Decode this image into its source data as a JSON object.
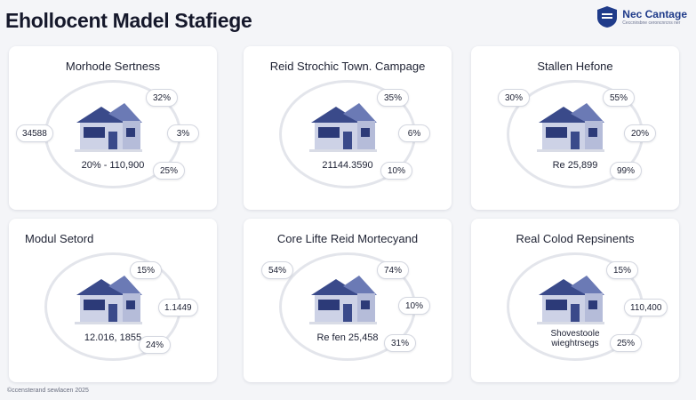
{
  "header": {
    "title": "Ehollocent Madel Stafiege",
    "brand_name": "Nec Cantage",
    "brand_sub": "Ceccnirsbne ceroncnrcns ner"
  },
  "cards": [
    {
      "title": "Morhode Sertness",
      "center": "20% - 110,900",
      "values": {
        "left": "34588",
        "top_right": "32%",
        "mid_right": "3%",
        "bottom_right": "25%"
      }
    },
    {
      "title": "Reid Strochic Town. Campage",
      "center": "21144.3590",
      "values": {
        "left": "",
        "top_right": "35%",
        "mid_right": "6%",
        "bottom_right": "10%"
      }
    },
    {
      "title": "Stallen Hefone",
      "center": "Re 25,899",
      "values": {
        "left": "30%",
        "top_right": "55%",
        "mid_right": "20%",
        "bottom_right": "99%"
      }
    },
    {
      "title": "Modul Setord",
      "center": "12.016, 1855",
      "values": {
        "left": "",
        "top_right": "15%",
        "mid_right": "1.1449",
        "bottom_right": "24%"
      }
    },
    {
      "title": "Core Lifte Reid Mortecyand",
      "center": "Re fen 25,458",
      "values": {
        "left": "54%",
        "top_right": "74%",
        "mid_right": "10%",
        "bottom_right": "31%"
      }
    },
    {
      "title": "Real Colod Repsinents",
      "center": "Shovestoole wieghtrsegs",
      "values": {
        "left": "",
        "top_right": "15%",
        "mid_right": "110,400",
        "bottom_right": "25%"
      }
    }
  ],
  "footer": {
    "text": "©ccensterand sewlacen 2025"
  },
  "colors": {
    "roof": "#3a4a8a",
    "wall": "#cdd2e6",
    "window": "#2c3a78",
    "ring": "#e3e5eb"
  }
}
